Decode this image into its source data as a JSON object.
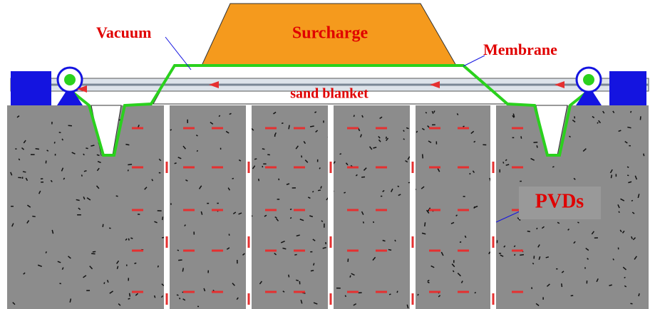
{
  "labels": {
    "vacuum": "Vacuum",
    "surcharge": "Surcharge",
    "membrane": "Membrane",
    "sand_blanket": "sand blanket",
    "pvds": "PVDs"
  }
}
